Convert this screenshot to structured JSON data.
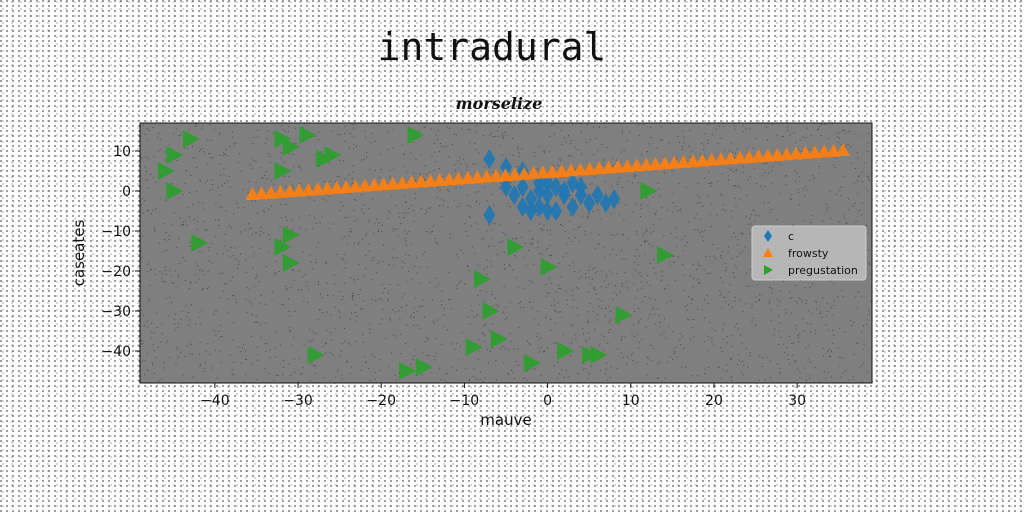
{
  "figure": {
    "suptitle": "intradural",
    "plot_background": "#7f7f7f",
    "speckle_color": "#1e1e1e"
  },
  "chart_data": {
    "type": "scatter",
    "title": "morselize",
    "xlabel": "mauve",
    "ylabel": "caseates",
    "xlim": [
      -49,
      39
    ],
    "ylim": [
      -48,
      17
    ],
    "xticks": [
      -40,
      -30,
      -20,
      -10,
      0,
      10,
      20,
      30
    ],
    "yticks": [
      10,
      0,
      -10,
      -20,
      -30,
      -40
    ],
    "grid": false,
    "legend_position": "center-right",
    "series": [
      {
        "name": "c",
        "marker": "diamond",
        "color": "#1f77b4",
        "points": [
          [
            -7,
            8
          ],
          [
            -5,
            6
          ],
          [
            -3,
            5
          ],
          [
            -7,
            -6
          ],
          [
            -5,
            1
          ],
          [
            -3,
            1
          ],
          [
            -1,
            2
          ],
          [
            1,
            1
          ],
          [
            3,
            2
          ],
          [
            -4,
            -1
          ],
          [
            -2,
            -2
          ],
          [
            0,
            -1
          ],
          [
            2,
            -1
          ],
          [
            4,
            -1
          ],
          [
            6,
            -1
          ],
          [
            8,
            -2
          ],
          [
            -3,
            -4
          ],
          [
            -1,
            -4
          ],
          [
            1,
            -5
          ],
          [
            3,
            -4
          ],
          [
            5,
            -3
          ],
          [
            7,
            -3
          ],
          [
            -1,
            0
          ],
          [
            0,
            2
          ],
          [
            2,
            0
          ],
          [
            4,
            1
          ],
          [
            -2,
            -5
          ],
          [
            0,
            -5
          ]
        ]
      },
      {
        "name": "frowsty",
        "marker": "triangle-up",
        "color": "#ff7f0e",
        "line": {
          "x_start": -35.5,
          "x_end": 35.5,
          "y_start": -1,
          "y_end": 10,
          "count": 64
        }
      },
      {
        "name": "pregustation",
        "marker": "triangle-right",
        "color": "#2ca02c",
        "points": [
          [
            -43,
            13
          ],
          [
            -45,
            9
          ],
          [
            -46,
            5
          ],
          [
            -45,
            0
          ],
          [
            -42,
            -13
          ],
          [
            -32,
            13
          ],
          [
            -31,
            11
          ],
          [
            -29,
            14
          ],
          [
            -27,
            8
          ],
          [
            -26,
            9
          ],
          [
            -32,
            5
          ],
          [
            -16,
            14
          ],
          [
            -31,
            -11
          ],
          [
            -32,
            -14
          ],
          [
            -31,
            -18
          ],
          [
            -28,
            -41
          ],
          [
            -15,
            -44
          ],
          [
            -17,
            -45
          ],
          [
            12,
            0
          ],
          [
            14,
            -16
          ],
          [
            -4,
            -14
          ],
          [
            0,
            -19
          ],
          [
            -8,
            -22
          ],
          [
            -7,
            -30
          ],
          [
            9,
            -31
          ],
          [
            -6,
            -37
          ],
          [
            -9,
            -39
          ],
          [
            2,
            -40
          ],
          [
            5,
            -41
          ],
          [
            6,
            -41
          ],
          [
            -2,
            -43
          ]
        ]
      }
    ]
  }
}
